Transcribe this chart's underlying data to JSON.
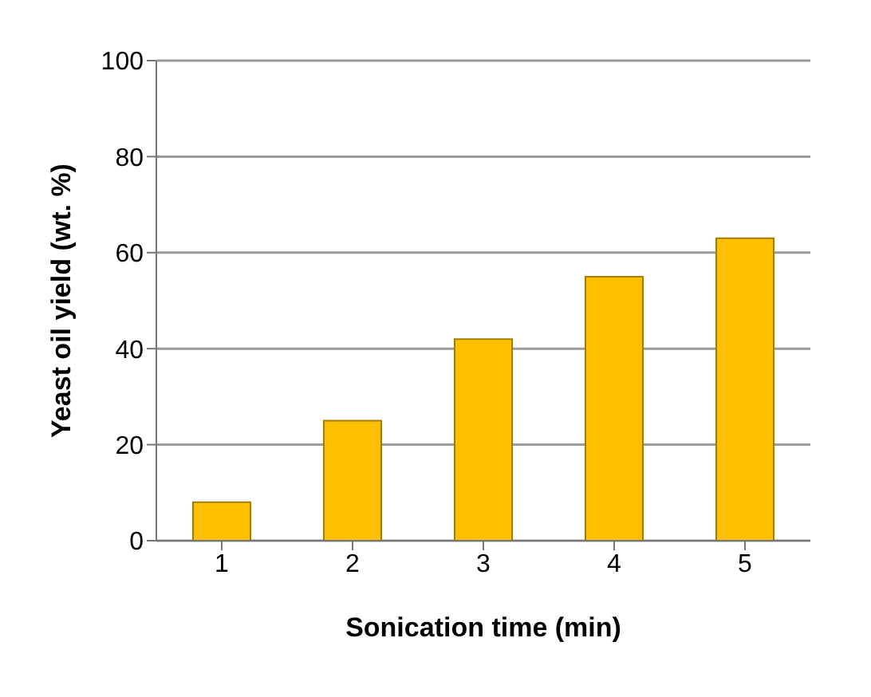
{
  "chart_data": {
    "type": "bar",
    "xlabel": "Sonication time (min)",
    "ylabel": "Yeast oil yield (wt. %)",
    "categories": [
      "1",
      "2",
      "3",
      "4",
      "5"
    ],
    "values": [
      8,
      25,
      42,
      55,
      63
    ],
    "color": "#ffc000",
    "ylim": [
      0,
      100
    ],
    "yticks": [
      0,
      20,
      40,
      60,
      80,
      100
    ],
    "grid": "y"
  }
}
